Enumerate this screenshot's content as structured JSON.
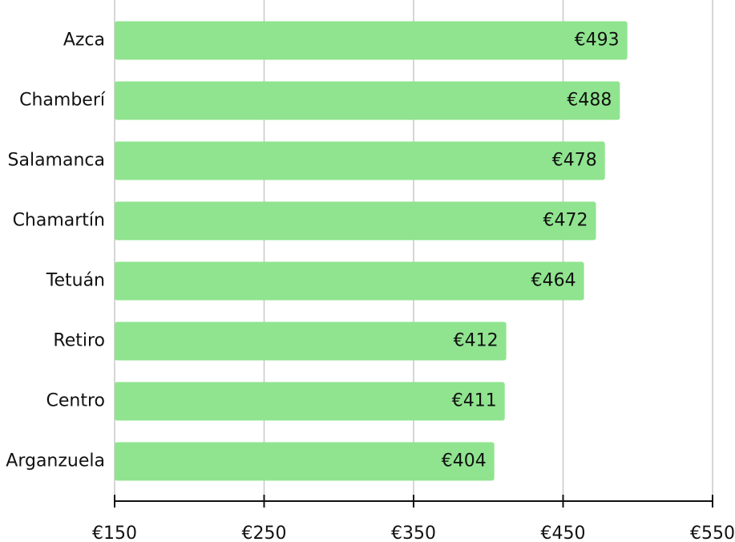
{
  "chart_data": {
    "type": "barh",
    "categories": [
      "Azca",
      "Chamberí",
      "Salamanca",
      "Chamartín",
      "Tetuán",
      "Retiro",
      "Centro",
      "Arganzuela"
    ],
    "values": [
      493,
      488,
      478,
      472,
      464,
      412,
      411,
      404
    ],
    "value_labels": [
      "€493",
      "€488",
      "€478",
      "€472",
      "€464",
      "€412",
      "€411",
      "€404"
    ],
    "color": "#90e48f",
    "xlim": [
      150,
      550
    ],
    "xticks": [
      {
        "value": 150,
        "label": "€150"
      },
      {
        "value": 250,
        "label": "€250"
      },
      {
        "value": 350,
        "label": "€350"
      },
      {
        "value": 450,
        "label": "€450"
      },
      {
        "value": 550,
        "label": "€550"
      }
    ],
    "grid": true
  }
}
